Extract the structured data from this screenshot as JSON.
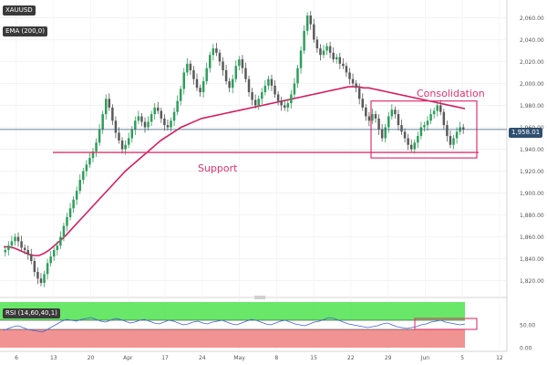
{
  "symbol": "XAUUSD",
  "indicator_label": "EMA (200,0)",
  "rsi_label": "RSI (14,60,40,1)",
  "last_price": "1,958.01",
  "colors": {
    "up_candle": "#2e9e5b",
    "down_candle": "#5a5a5a",
    "ema": "#d81b60",
    "annotation": "#e0336c",
    "price_line": "#3a5a7a",
    "rsi_line": "#3f63d8",
    "rsi_upper_zone": "#4fe34f",
    "rsi_lower_zone": "#f08080"
  },
  "chart_data": [
    {
      "type": "candlestick",
      "title": "XAUUSD",
      "x_tick_labels": [
        "6",
        "13",
        "20",
        "Apr",
        "17",
        "24",
        "May",
        "8",
        "15",
        "22",
        "29",
        "Jun",
        "5",
        "12"
      ],
      "y_tick_labels": [
        "1,820.00",
        "1,840.00",
        "1,860.00",
        "1,880.00",
        "1,900.00",
        "1,920.00",
        "1,940.00",
        "1,960.00",
        "1,980.00",
        "2,000.00",
        "2,020.00",
        "2,040.00",
        "2,060.00"
      ],
      "ylim": [
        1808,
        2072
      ],
      "close_series": [
        1848,
        1852,
        1856,
        1860,
        1856,
        1850,
        1848,
        1844,
        1838,
        1828,
        1822,
        1818,
        1826,
        1836,
        1842,
        1848,
        1852,
        1860,
        1870,
        1878,
        1886,
        1894,
        1902,
        1912,
        1920,
        1926,
        1932,
        1938,
        1946,
        1958,
        1972,
        1986,
        1978,
        1966,
        1955,
        1948,
        1940,
        1944,
        1950,
        1958,
        1966,
        1970,
        1965,
        1960,
        1965,
        1972,
        1978,
        1975,
        1968,
        1962,
        1960,
        1966,
        1974,
        1984,
        1995,
        2010,
        2018,
        2012,
        2004,
        1996,
        1992,
        2002,
        2014,
        2026,
        2032,
        2028,
        2020,
        2012,
        2002,
        1996,
        2004,
        2016,
        2022,
        2014,
        2004,
        1992,
        1985,
        1980,
        1986,
        1992,
        1998,
        2004,
        1998,
        1990,
        1984,
        1980,
        1978,
        1982,
        1990,
        2000,
        2014,
        2030,
        2048,
        2062,
        2054,
        2040,
        2032,
        2026,
        2030,
        2034,
        2028,
        2022,
        2024,
        2018,
        2016,
        2010,
        2004,
        2000,
        1996,
        1986,
        1978,
        1970,
        1966,
        1972,
        1968,
        1958,
        1950,
        1960,
        1970,
        1976,
        1972,
        1962,
        1956,
        1950,
        1944,
        1940,
        1946,
        1952,
        1960,
        1962,
        1966,
        1972,
        1975,
        1980,
        1974,
        1962,
        1952,
        1944,
        1950,
        1956,
        1960,
        1958
      ],
      "ema_series": [
        1851,
        1851,
        1850,
        1848,
        1846,
        1844,
        1843,
        1843,
        1845,
        1848,
        1852,
        1856,
        1860,
        1865,
        1870,
        1875,
        1880,
        1885,
        1890,
        1895,
        1900,
        1905,
        1910,
        1915,
        1920,
        1924,
        1928,
        1932,
        1936,
        1940,
        1944,
        1948,
        1951,
        1954,
        1957,
        1960,
        1962,
        1964,
        1966,
        1968,
        1969,
        1970,
        1971,
        1972,
        1973,
        1974,
        1975,
        1976,
        1977,
        1978,
        1979,
        1980,
        1981,
        1982,
        1983,
        1984,
        1985,
        1986,
        1987,
        1988,
        1989,
        1990,
        1991,
        1992,
        1993,
        1994,
        1995,
        1996,
        1997,
        1997,
        1997,
        1996,
        1996,
        1995,
        1994,
        1993,
        1992,
        1991,
        1990,
        1989,
        1988,
        1987,
        1986,
        1985,
        1984,
        1983,
        1982,
        1981,
        1980,
        1979,
        1978,
        1977
      ],
      "support_level": 1937,
      "support_label": "Support",
      "consolidation_label": "Consolidation",
      "consolidation_range": [
        1932,
        1984
      ]
    },
    {
      "type": "line",
      "title": "RSI (14,60,40,1)",
      "y_tick_labels": [
        "50.00",
        "0.00"
      ],
      "ylim": [
        0,
        100
      ],
      "levels": [
        60,
        40
      ],
      "values": [
        38,
        42,
        46,
        48,
        44,
        40,
        38,
        36,
        34,
        40,
        46,
        52,
        58,
        62,
        60,
        58,
        62,
        64,
        66,
        62,
        58,
        56,
        60,
        64,
        62,
        58,
        54,
        56,
        60,
        62,
        58,
        54,
        52,
        56,
        60,
        58,
        54,
        50,
        52,
        56,
        58,
        54,
        52,
        56,
        58,
        60,
        56,
        52,
        50,
        54,
        58,
        62,
        60,
        56,
        52,
        50,
        54,
        58,
        60,
        56,
        52,
        50,
        48,
        52,
        56,
        58,
        62,
        66,
        64,
        60,
        56,
        52,
        50,
        48,
        46,
        44,
        46,
        48,
        52,
        54,
        50,
        46,
        44,
        42,
        44,
        46,
        50,
        52,
        56,
        58,
        60,
        56,
        54,
        52,
        50,
        52
      ]
    }
  ]
}
